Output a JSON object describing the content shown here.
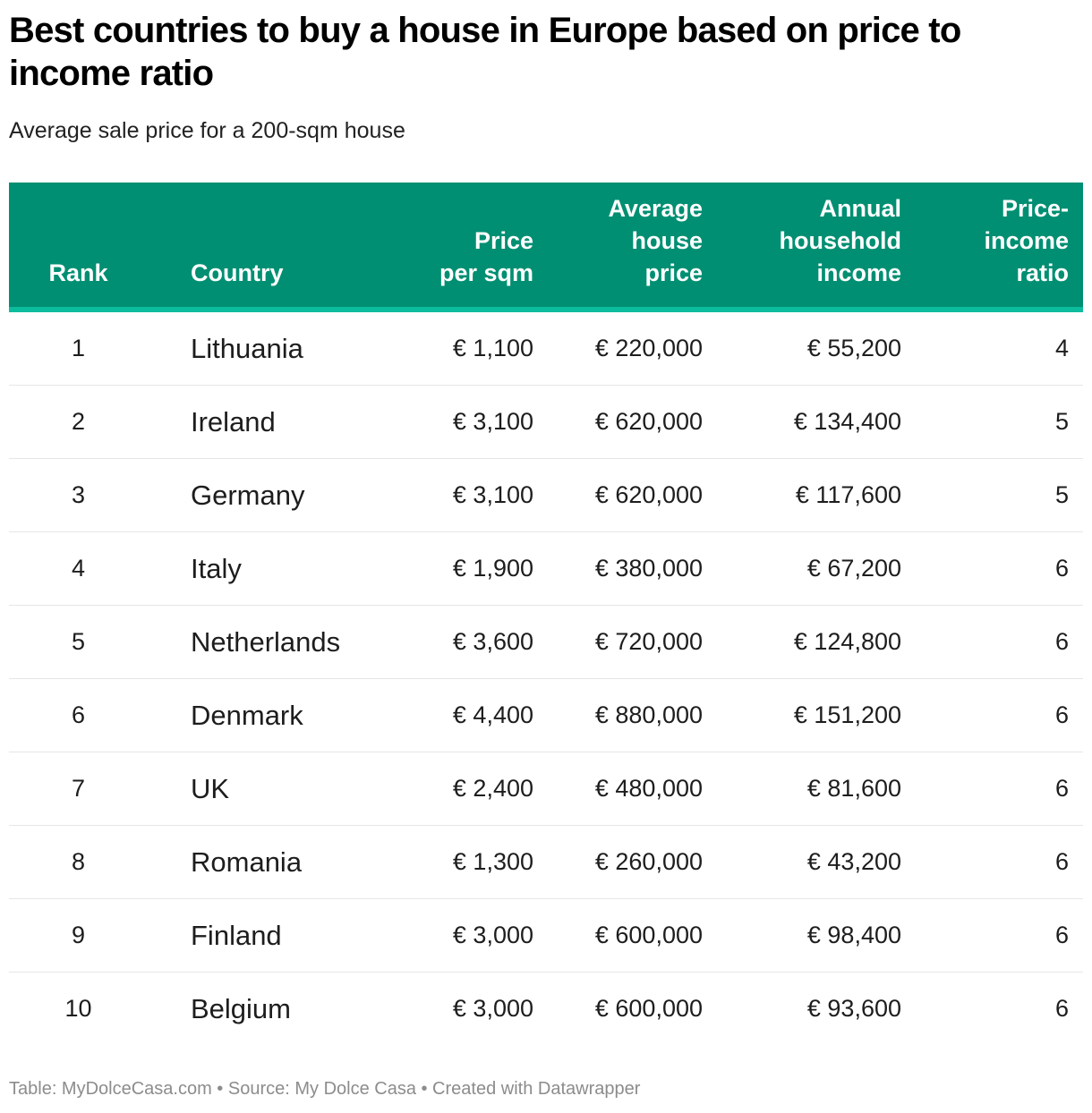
{
  "title": "Best countries to buy a house in Europe based on price to income ratio",
  "subtitle": "Average sale price for a 200-sqm house",
  "colors": {
    "header_bg": "#008f72",
    "header_accent_line": "#0bbc9d",
    "row_divider": "#e6e6e6",
    "footer_text": "#8c8c8c"
  },
  "table": {
    "headers": {
      "rank": [
        "Rank"
      ],
      "country": [
        "Country"
      ],
      "price_per_sqm": [
        "Price",
        "per sqm"
      ],
      "avg_house_price": [
        "Average",
        "house",
        "price"
      ],
      "annual_income": [
        "Annual",
        "household",
        "income"
      ],
      "ratio": [
        "Price-",
        "income",
        "ratio"
      ]
    },
    "rows": [
      {
        "rank": "1",
        "country": "Lithuania",
        "price_per_sqm": "€ 1,100",
        "avg_house_price": "€ 220,000",
        "annual_income": "€ 55,200",
        "ratio": "4"
      },
      {
        "rank": "2",
        "country": "Ireland",
        "price_per_sqm": "€ 3,100",
        "avg_house_price": "€ 620,000",
        "annual_income": "€ 134,400",
        "ratio": "5"
      },
      {
        "rank": "3",
        "country": "Germany",
        "price_per_sqm": "€ 3,100",
        "avg_house_price": "€ 620,000",
        "annual_income": "€ 117,600",
        "ratio": "5"
      },
      {
        "rank": "4",
        "country": "Italy",
        "price_per_sqm": "€ 1,900",
        "avg_house_price": "€ 380,000",
        "annual_income": "€ 67,200",
        "ratio": "6"
      },
      {
        "rank": "5",
        "country": "Netherlands",
        "price_per_sqm": "€ 3,600",
        "avg_house_price": "€ 720,000",
        "annual_income": "€ 124,800",
        "ratio": "6"
      },
      {
        "rank": "6",
        "country": "Denmark",
        "price_per_sqm": "€ 4,400",
        "avg_house_price": "€ 880,000",
        "annual_income": "€ 151,200",
        "ratio": "6"
      },
      {
        "rank": "7",
        "country": "UK",
        "price_per_sqm": "€ 2,400",
        "avg_house_price": "€ 480,000",
        "annual_income": "€ 81,600",
        "ratio": "6"
      },
      {
        "rank": "8",
        "country": "Romania",
        "price_per_sqm": "€ 1,300",
        "avg_house_price": "€ 260,000",
        "annual_income": "€ 43,200",
        "ratio": "6"
      },
      {
        "rank": "9",
        "country": "Finland",
        "price_per_sqm": "€ 3,000",
        "avg_house_price": "€ 600,000",
        "annual_income": "€ 98,400",
        "ratio": "6"
      },
      {
        "rank": "10",
        "country": "Belgium",
        "price_per_sqm": "€ 3,000",
        "avg_house_price": "€ 600,000",
        "annual_income": "€ 93,600",
        "ratio": "6"
      }
    ]
  },
  "footer": "Table: MyDolceCasa.com • Source: My Dolce Casa • Created with Datawrapper"
}
